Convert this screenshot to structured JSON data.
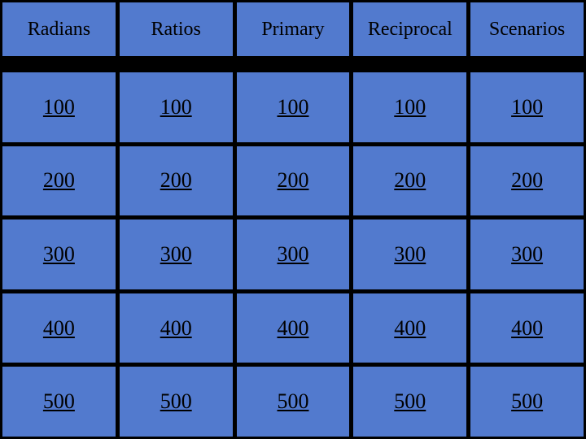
{
  "board": {
    "type": "table",
    "background_color": "#000000",
    "cell_color": "#527ace",
    "cell_border_color": "#000000",
    "text_color": "#000000",
    "header_fontsize": 24,
    "value_fontsize": 26,
    "value_underline": true,
    "columns": 5,
    "rows": 5,
    "categories": [
      "Radians",
      "Ratios",
      "Primary",
      "Reciprocal",
      "Scenarios"
    ],
    "values": [
      [
        100,
        100,
        100,
        100,
        100
      ],
      [
        200,
        200,
        200,
        200,
        200
      ],
      [
        300,
        300,
        300,
        300,
        300
      ],
      [
        400,
        400,
        400,
        400,
        400
      ],
      [
        500,
        500,
        500,
        500,
        500
      ]
    ]
  }
}
